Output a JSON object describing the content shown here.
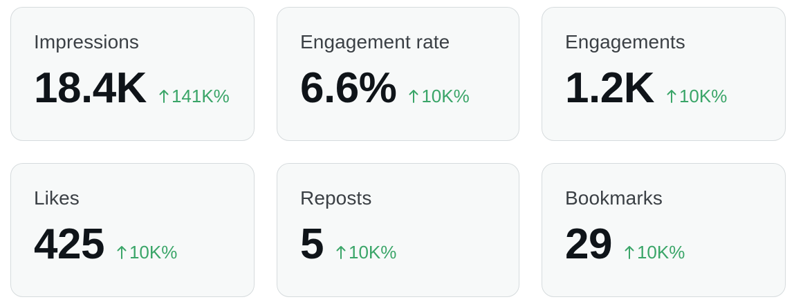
{
  "accent_up_color": "#3aa568",
  "cards": [
    {
      "label": "Impressions",
      "value": "18.4K",
      "change": "141K%",
      "trend_icon": "arrow-up-icon"
    },
    {
      "label": "Engagement rate",
      "value": "6.6%",
      "change": "10K%",
      "trend_icon": "arrow-up-icon"
    },
    {
      "label": "Engagements",
      "value": "1.2K",
      "change": "10K%",
      "trend_icon": "arrow-up-icon"
    },
    {
      "label": "Likes",
      "value": "425",
      "change": "10K%",
      "trend_icon": "arrow-up-icon"
    },
    {
      "label": "Reposts",
      "value": "5",
      "change": "10K%",
      "trend_icon": "arrow-up-icon"
    },
    {
      "label": "Bookmarks",
      "value": "29",
      "change": "10K%",
      "trend_icon": "arrow-up-icon"
    }
  ]
}
